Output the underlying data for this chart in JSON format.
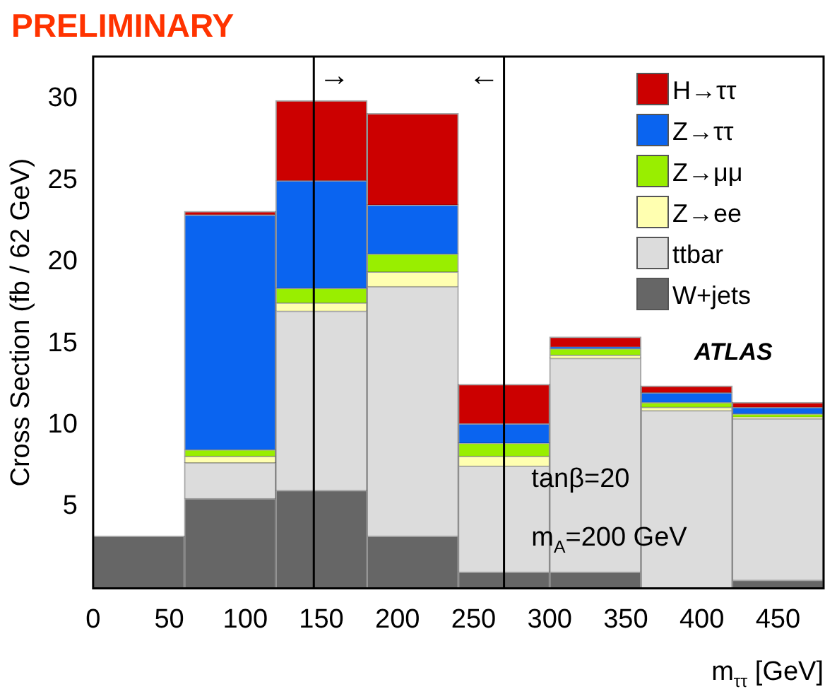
{
  "chart_data": {
    "type": "bar",
    "title": "PRELIMINARY",
    "xlabel": "m$_{ττ}$ [GeV]",
    "ylabel": "Cross Section (fb / 62 GeV)",
    "x": [
      30,
      90,
      150,
      210,
      270,
      330,
      390,
      450
    ],
    "stacked": true,
    "series": [
      {
        "name": "W+jets",
        "color": "#666666",
        "values": [
          3.2,
          5.5,
          6.0,
          3.2,
          1.0,
          1.0,
          0,
          0.5
        ]
      },
      {
        "name": "ttbar",
        "color": "#dcdcdc",
        "values": [
          0,
          2.2,
          11.0,
          15.3,
          6.5,
          13.1,
          10.9,
          9.9
        ]
      },
      {
        "name": "Z→ee",
        "color": "#ffffb0",
        "values": [
          0,
          0.4,
          0.5,
          0.9,
          0.6,
          0.2,
          0.2,
          0.1
        ]
      },
      {
        "name": "Z→μμ",
        "color": "#99ee00",
        "values": [
          0,
          0.4,
          0.9,
          1.1,
          0.8,
          0.4,
          0.3,
          0.2
        ]
      },
      {
        "name": "Z→ττ",
        "color": "#0a64f0",
        "values": [
          0,
          14.4,
          6.6,
          3.0,
          1.2,
          0.1,
          0.6,
          0.4
        ]
      },
      {
        "name": "H→ττ",
        "color": "#cc0000",
        "values": [
          0,
          0.2,
          4.9,
          5.6,
          2.4,
          0.6,
          0.4,
          0.3
        ]
      }
    ],
    "xlim": [
      0,
      480
    ],
    "xticks": [
      0,
      50,
      100,
      150,
      200,
      250,
      300,
      350,
      400,
      450
    ],
    "ylim": [
      0,
      32.6
    ],
    "yticks": [
      5,
      10,
      15,
      20,
      25,
      30
    ],
    "ref_lines": [
      {
        "axis": "x",
        "value": 145,
        "color": "#000000"
      },
      {
        "axis": "x",
        "value": 270,
        "color": "#000000"
      }
    ],
    "annotations": [
      "ATLAS",
      "tanβ=20",
      "m$_{A}$=200 GeV",
      "→",
      "←"
    ],
    "legend": "top right",
    "grid": false
  }
}
